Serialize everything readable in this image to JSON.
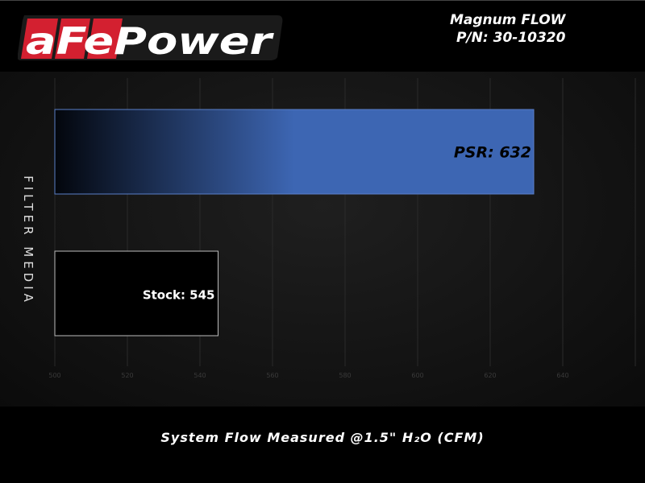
{
  "header": {
    "brand": "aFePower",
    "title": "Magnum FLOW",
    "part_number": "P/N: 30-10320"
  },
  "chart_data": {
    "type": "bar",
    "orientation": "horizontal",
    "categories": [
      "PSR",
      "Stock"
    ],
    "values": [
      632,
      545
    ],
    "data_labels": [
      "PSR: 632",
      "Stock: 545"
    ],
    "xlabel": "System Flow Measured @1.5\" H₂O (CFM)",
    "ylabel": "FILTER MEDIA",
    "xlim": [
      500,
      660
    ],
    "xticks": [
      500,
      520,
      540,
      560,
      580,
      600,
      620,
      640
    ],
    "grid": true,
    "colors": {
      "psr": "#3d66b3",
      "stock": "#000000",
      "grid": "#2a2a2a",
      "tick": "#3a3a3a"
    }
  }
}
